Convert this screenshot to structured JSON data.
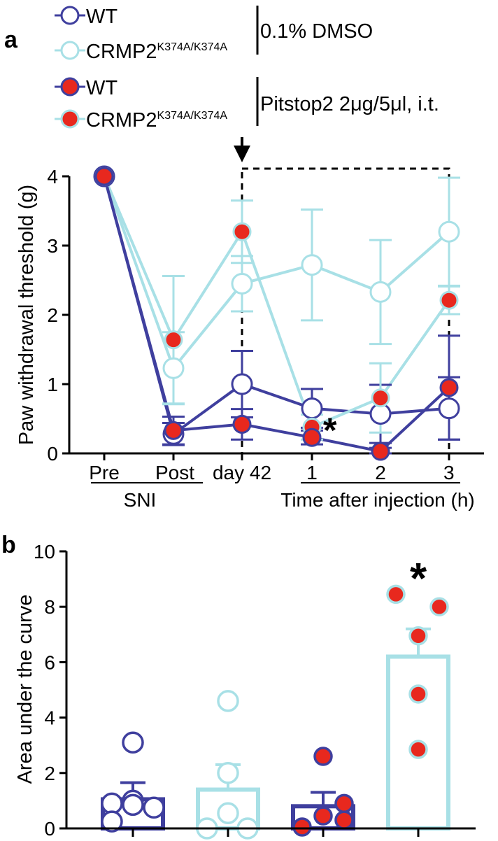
{
  "colors": {
    "wt": "#3f3f9e",
    "ki": "#a8e0e6",
    "red": "#e8281e",
    "black": "#000000"
  },
  "panel_a_label": "a",
  "panel_b_label": "b",
  "legend": {
    "wt": "WT",
    "ki_base": "CRMP2",
    "ki_sup": "K374A/K374A",
    "group1": "0.1% DMSO",
    "group2": "Pitstop2 2μg/5μl, i.t."
  },
  "chart_data": [
    {
      "type": "line",
      "panel": "a",
      "ylabel": "Paw withdrawal threshold (g)",
      "ylim": [
        0,
        4
      ],
      "yticks": [
        "0",
        "1",
        "2",
        "3",
        "4"
      ],
      "categories": [
        "Pre",
        "Post",
        "day 42",
        "1",
        "2",
        "3"
      ],
      "group_labels": [
        "SNI",
        "Time after injection (h)"
      ],
      "annotation": "*",
      "series": [
        {
          "name": "WT 0.1% DMSO",
          "values": [
            4,
            0.28,
            1.0,
            0.65,
            0.57,
            0.65
          ],
          "err": [
            0,
            0.16,
            0.48,
            0.28,
            0.42,
            0.45
          ],
          "style": "wt-open"
        },
        {
          "name": "CRMP2K374A/K374A 0.1% DMSO",
          "values": [
            4,
            1.23,
            2.45,
            2.72,
            2.33,
            3.2
          ],
          "err": [
            0,
            0.52,
            0.4,
            0.8,
            0.75,
            0.78
          ],
          "style": "ki-open"
        },
        {
          "name": "WT Pitstop2",
          "values": [
            4,
            0.33,
            0.42,
            0.23,
            0.03,
            0.95
          ],
          "err": [
            0,
            0.2,
            0.22,
            0.1,
            0.05,
            0.75
          ],
          "style": "wt-filled"
        },
        {
          "name": "CRMP2K374A/K374A Pitstop2",
          "values": [
            4,
            1.64,
            3.2,
            0.38,
            0.8,
            2.21
          ],
          "err": [
            0,
            0.92,
            0.45,
            0.18,
            0.5,
            0.2
          ],
          "style": "ki-filled"
        }
      ]
    },
    {
      "type": "bar",
      "panel": "b",
      "ylabel": "Area under the curve",
      "ylim": [
        0,
        10
      ],
      "yticks": [
        "0",
        "2",
        "4",
        "6",
        "8",
        "10"
      ],
      "annotation": "*",
      "groups": [
        {
          "name": "WT 0.1% DMSO",
          "mean": 1.05,
          "sem": 0.6,
          "points": [
            0.9,
            1.0,
            0.75,
            0.25,
            3.1,
            0.85
          ],
          "style": "wt-open"
        },
        {
          "name": "CRMP2K374A/K374A 0.1% DMSO",
          "mean": 1.4,
          "sem": 0.9,
          "points": [
            0.0,
            0.0,
            0.55,
            2.0,
            4.6
          ],
          "style": "ki-open"
        },
        {
          "name": "WT Pitstop2",
          "mean": 0.8,
          "sem": 0.5,
          "points": [
            0.05,
            0.45,
            0.9,
            0.3,
            2.6
          ],
          "style": "wt-filled"
        },
        {
          "name": "CRMP2K374A/K374A Pitstop2",
          "mean": 6.2,
          "sem": 1.0,
          "points": [
            8.45,
            8.0,
            6.95,
            4.85,
            2.85
          ],
          "style": "ki-filled"
        }
      ]
    }
  ]
}
